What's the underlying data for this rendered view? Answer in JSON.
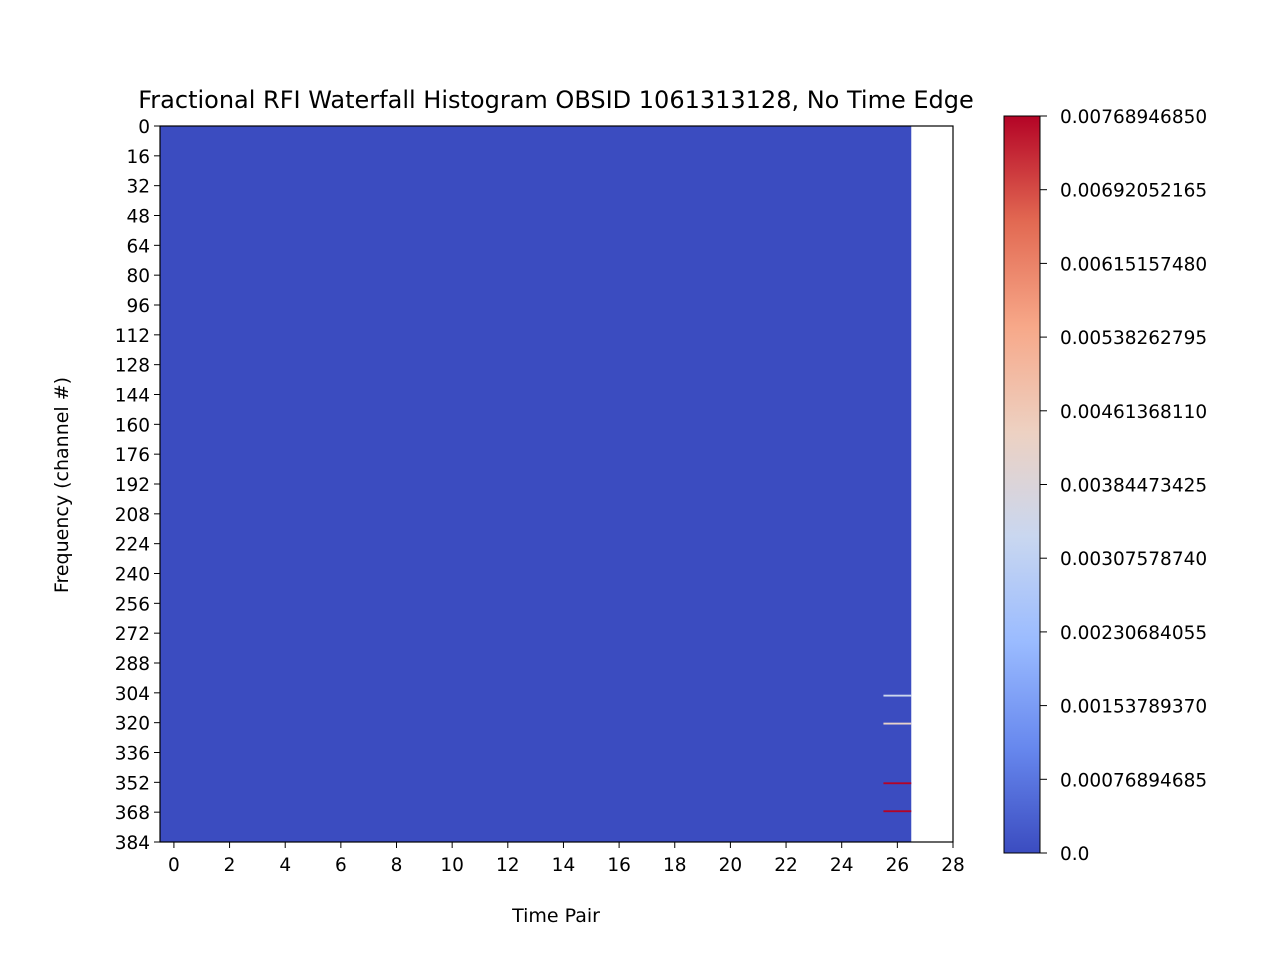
{
  "chart_data": {
    "type": "heatmap",
    "title": "Fractional RFI Waterfall Histogram OBSID 1061313128, No Time Edge",
    "xlabel": "Time Pair",
    "ylabel": "Frequency (channel #)",
    "xlim": [
      -0.5,
      28
    ],
    "ylim": [
      384,
      0
    ],
    "x_ticks": [
      "0",
      "2",
      "4",
      "6",
      "8",
      "10",
      "12",
      "14",
      "16",
      "18",
      "20",
      "22",
      "24",
      "26",
      "28"
    ],
    "y_ticks": [
      "0",
      "16",
      "32",
      "48",
      "64",
      "80",
      "96",
      "112",
      "128",
      "144",
      "160",
      "176",
      "192",
      "208",
      "224",
      "240",
      "256",
      "272",
      "288",
      "304",
      "320",
      "336",
      "352",
      "368",
      "384"
    ],
    "data_extent": {
      "x": [
        -0.5,
        26.5
      ],
      "y": [
        0,
        384
      ]
    },
    "background_value": 0.0,
    "colormap": "coolwarm",
    "colormap_colors": [
      "#3b4cc0",
      "#6788ee",
      "#9abbff",
      "#c9d7f0",
      "#edd1c2",
      "#f7a889",
      "#e26952",
      "#b40426"
    ],
    "vmin": 0.0,
    "vmax": 0.0076894685,
    "hot_cells": [
      {
        "x": 26,
        "channel": 305,
        "value": 0.0034
      },
      {
        "x": 26,
        "channel": 320,
        "value": 0.0042
      },
      {
        "x": 26,
        "channel": 352,
        "value": 0.0076894685
      },
      {
        "x": 26,
        "channel": 367,
        "value": 0.0076894685
      }
    ],
    "colorbar": {
      "ticks": [
        "0.0",
        "0.00076894685",
        "0.00153789370",
        "0.00230684055",
        "0.00307578740",
        "0.00384473425",
        "0.00461368110",
        "0.00538262795",
        "0.00615157480",
        "0.00692052165",
        "0.00768946850"
      ],
      "tick_values": [
        0.0,
        0.00076894685,
        0.0015378937,
        0.00230684055,
        0.0030757874,
        0.00384473425,
        0.0046136811,
        0.00538262795,
        0.0061515748,
        0.00692052165,
        0.0076894685
      ]
    },
    "grid": false,
    "legend": "none"
  }
}
